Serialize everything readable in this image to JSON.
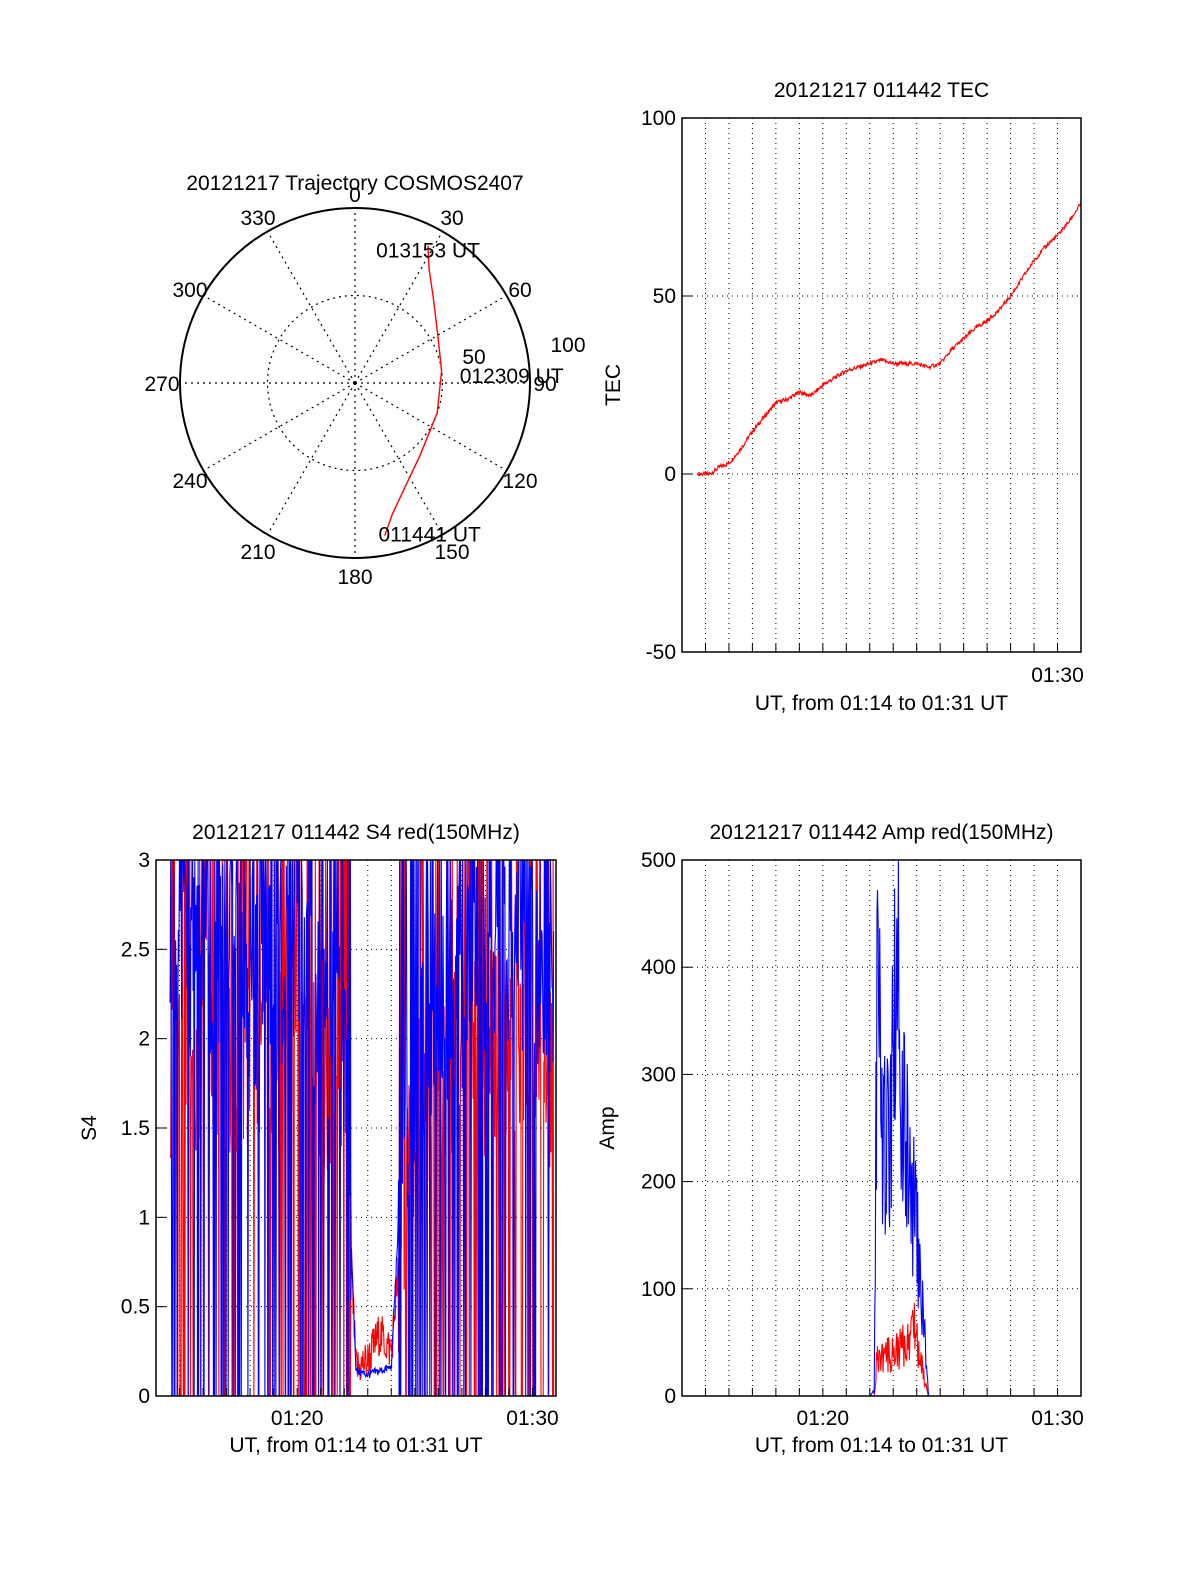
{
  "chart_data": [
    {
      "id": "trajectory",
      "type": "polar",
      "title": "20121217 Trajectory COSMOS2407",
      "azimuth_labels": [
        "0",
        "30",
        "60",
        "90",
        "120",
        "150",
        "180",
        "210",
        "240",
        "270",
        "300",
        "330"
      ],
      "radial_labels": [
        "50",
        "100"
      ],
      "grid": true,
      "series": [
        {
          "color": "#ff0000",
          "points": [
            {
              "az": 169,
              "el": 10
            },
            {
              "az": 164,
              "el": 20
            },
            {
              "az": 155,
              "el": 30
            },
            {
              "az": 138,
              "el": 40
            },
            {
              "az": 110,
              "el": 45
            },
            {
              "az": 82,
              "el": 45
            },
            {
              "az": 58,
              "el": 40
            },
            {
              "az": 42,
              "el": 30
            },
            {
              "az": 33,
              "el": 20
            },
            {
              "az": 28,
              "el": 10
            }
          ]
        }
      ],
      "annotations": [
        {
          "text": "013153 UT",
          "az": 28,
          "el": 10
        },
        {
          "text": "012309 UT",
          "az": 82,
          "el": 45
        },
        {
          "text": "011441 UT",
          "az": 169,
          "el": 10
        }
      ]
    },
    {
      "id": "tec",
      "type": "line",
      "title": "20121217 011442 TEC",
      "xlabel": "UT, from 01:14 to 01:31 UT",
      "ylabel": "TEC",
      "xlim": [
        74.0,
        91.0
      ],
      "ylim": [
        -50,
        100
      ],
      "y_ticks": [
        -50,
        0,
        50,
        100
      ],
      "x_ticks": [
        {
          "value": 90,
          "label": "01:30"
        }
      ],
      "grid": true,
      "series": [
        {
          "color": "#ff0000",
          "x": [
            74.7,
            75.2,
            75.6,
            76.0,
            76.5,
            77.0,
            77.5,
            78.0,
            78.5,
            79.0,
            79.5,
            80.0,
            80.5,
            81.0,
            81.5,
            82.0,
            82.5,
            83.0,
            83.5,
            84.0,
            84.5,
            85.0,
            85.5,
            86.0,
            86.5,
            87.0,
            87.5,
            88.0,
            88.5,
            89.0,
            89.5,
            90.0,
            90.5,
            91.0
          ],
          "y": [
            0,
            0,
            2,
            3,
            7,
            12,
            16,
            20,
            21,
            23,
            22,
            25,
            27,
            29,
            30,
            31,
            32,
            31,
            31,
            31,
            30,
            31,
            35,
            38,
            41,
            43,
            46,
            50,
            55,
            60,
            64,
            67,
            71,
            76
          ]
        }
      ]
    },
    {
      "id": "s4",
      "type": "line",
      "title": "20121217 011442 S4 red(150MHz)",
      "xlabel": "UT, from 01:14 to 01:31 UT",
      "ylabel": "S4",
      "xlim": [
        74.0,
        91.0
      ],
      "ylim": [
        0,
        3
      ],
      "y_ticks": [
        0,
        0.5,
        1,
        1.5,
        2,
        2.5,
        3
      ],
      "x_ticks": [
        {
          "value": 80,
          "label": "01:20"
        },
        {
          "value": 90,
          "label": "01:30"
        }
      ],
      "grid": true,
      "series": [
        {
          "color": "#ff0000",
          "x": [
            74.6,
            76.0,
            78.0,
            80.0,
            82.0,
            82.5,
            83.0,
            83.5,
            84.0,
            84.5,
            85.0,
            86.0,
            88.0,
            90.0,
            90.9
          ],
          "y": [
            1.8,
            2.0,
            1.9,
            2.0,
            1.6,
            0.15,
            0.2,
            0.35,
            0.25,
            1.0,
            1.6,
            1.8,
            1.9,
            2.0,
            1.8
          ]
        },
        {
          "color": "#0000ff",
          "x": [
            74.6,
            76.0,
            78.0,
            80.0,
            82.0,
            82.5,
            83.0,
            83.5,
            84.0,
            84.5,
            85.0,
            86.0,
            88.0,
            90.0,
            90.9
          ],
          "y": [
            2.4,
            2.5,
            2.3,
            2.4,
            1.9,
            0.14,
            0.12,
            0.14,
            0.16,
            1.5,
            1.9,
            2.2,
            2.4,
            2.5,
            2.3
          ]
        }
      ]
    },
    {
      "id": "amp",
      "type": "line",
      "title": "20121217 011442 Amp red(150MHz)",
      "xlabel": "UT, from 01:14 to 01:31 UT",
      "ylabel": "Amp",
      "xlim": [
        74.0,
        91.0
      ],
      "ylim": [
        0,
        500
      ],
      "y_ticks": [
        0,
        100,
        200,
        300,
        400,
        500
      ],
      "x_ticks": [
        {
          "value": 80,
          "label": "01:20"
        },
        {
          "value": 90,
          "label": "01:30"
        }
      ],
      "grid": true,
      "series": [
        {
          "color": "#ff0000",
          "x": [
            74.6,
            82.0,
            82.2,
            82.3,
            82.7,
            83.0,
            83.3,
            83.6,
            83.9,
            84.1,
            84.3,
            84.5,
            91.0
          ],
          "y": [
            0,
            0,
            0,
            35,
            38,
            40,
            45,
            50,
            70,
            40,
            20,
            0,
            0
          ]
        },
        {
          "color": "#0000ff",
          "x": [
            74.6,
            82.0,
            82.2,
            82.3,
            82.5,
            82.8,
            83.0,
            83.2,
            83.4,
            83.6,
            83.8,
            84.0,
            84.2,
            84.4,
            84.5,
            91.0
          ],
          "y": [
            0,
            0,
            5,
            380,
            260,
            230,
            300,
            450,
            250,
            220,
            180,
            150,
            90,
            40,
            0,
            0
          ]
        }
      ]
    }
  ]
}
